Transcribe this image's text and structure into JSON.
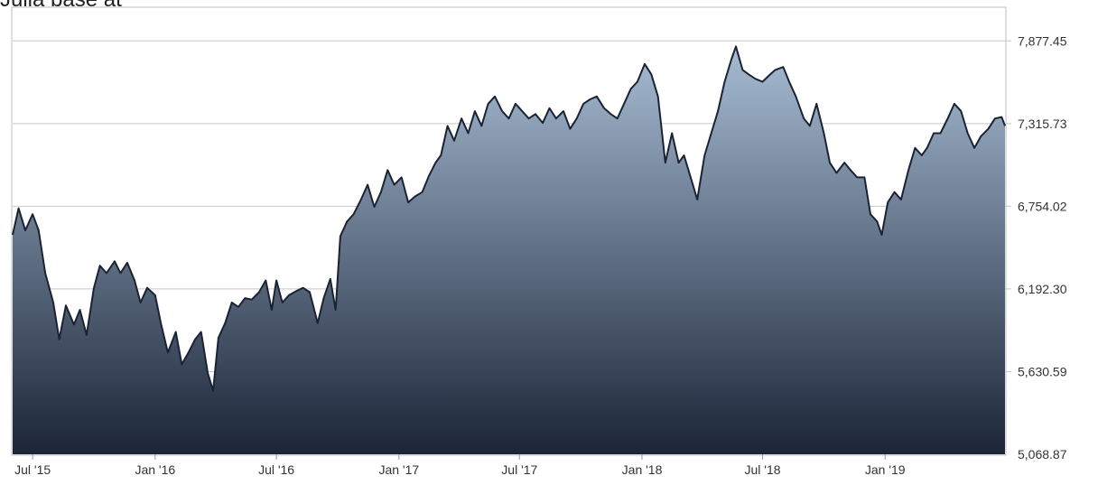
{
  "header": {
    "partial_text": "Julia base at "
  },
  "chart_data": {
    "type": "area",
    "title": "",
    "xlabel": "",
    "ylabel": "",
    "y_axis_position": "right",
    "ylim": [
      5068.87,
      8100
    ],
    "yticks": [
      5068.87,
      5630.59,
      6192.3,
      6754.02,
      7315.73,
      7877.45
    ],
    "ytick_labels": [
      "5,068.87",
      "5,630.59",
      "6,192.30",
      "6,754.02",
      "7,315.73",
      "7,877.45"
    ],
    "xlim": [
      "2015-06-01",
      "2019-06-30"
    ],
    "xticks": [
      {
        "date": "2015-07-01",
        "label": "Jul '15"
      },
      {
        "date": "2016-01-01",
        "label": "Jan '16"
      },
      {
        "date": "2016-07-01",
        "label": "Jul '16"
      },
      {
        "date": "2017-01-01",
        "label": "Jan '17"
      },
      {
        "date": "2017-07-01",
        "label": "Jul '17"
      },
      {
        "date": "2018-01-01",
        "label": "Jan '18"
      },
      {
        "date": "2018-07-01",
        "label": "Jul '18"
      },
      {
        "date": "2019-01-01",
        "label": "Jan '19"
      }
    ],
    "grid": true,
    "colors": {
      "line": "#1b2333",
      "fill_top": "#a6bcd3",
      "fill_bottom": "#1c2538",
      "grid": "#c8c8c8",
      "tick_text": "#333333"
    },
    "series": [
      {
        "points": [
          [
            "2015-06-01",
            6560
          ],
          [
            "2015-06-10",
            6740
          ],
          [
            "2015-06-20",
            6590
          ],
          [
            "2015-07-01",
            6700
          ],
          [
            "2015-07-10",
            6590
          ],
          [
            "2015-07-20",
            6300
          ],
          [
            "2015-08-01",
            6100
          ],
          [
            "2015-08-10",
            5850
          ],
          [
            "2015-08-20",
            6080
          ],
          [
            "2015-09-01",
            5950
          ],
          [
            "2015-09-10",
            6050
          ],
          [
            "2015-09-20",
            5880
          ],
          [
            "2015-10-01",
            6200
          ],
          [
            "2015-10-10",
            6350
          ],
          [
            "2015-10-20",
            6300
          ],
          [
            "2015-11-01",
            6380
          ],
          [
            "2015-11-10",
            6300
          ],
          [
            "2015-11-20",
            6370
          ],
          [
            "2015-12-01",
            6250
          ],
          [
            "2015-12-10",
            6100
          ],
          [
            "2015-12-20",
            6200
          ],
          [
            "2016-01-01",
            6150
          ],
          [
            "2016-01-10",
            5950
          ],
          [
            "2016-01-20",
            5760
          ],
          [
            "2016-02-01",
            5900
          ],
          [
            "2016-02-10",
            5680
          ],
          [
            "2016-02-20",
            5760
          ],
          [
            "2016-03-01",
            5850
          ],
          [
            "2016-03-10",
            5900
          ],
          [
            "2016-03-20",
            5620
          ],
          [
            "2016-03-28",
            5500
          ],
          [
            "2016-04-05",
            5860
          ],
          [
            "2016-04-15",
            5960
          ],
          [
            "2016-04-25",
            6100
          ],
          [
            "2016-05-05",
            6070
          ],
          [
            "2016-05-15",
            6130
          ],
          [
            "2016-05-25",
            6120
          ],
          [
            "2016-06-05",
            6170
          ],
          [
            "2016-06-15",
            6250
          ],
          [
            "2016-06-24",
            6050
          ],
          [
            "2016-07-01",
            6250
          ],
          [
            "2016-07-10",
            6100
          ],
          [
            "2016-07-20",
            6150
          ],
          [
            "2016-08-01",
            6180
          ],
          [
            "2016-08-10",
            6200
          ],
          [
            "2016-08-20",
            6170
          ],
          [
            "2016-09-01",
            5960
          ],
          [
            "2016-09-10",
            6130
          ],
          [
            "2016-09-20",
            6260
          ],
          [
            "2016-09-28",
            6050
          ],
          [
            "2016-10-05",
            6550
          ],
          [
            "2016-10-15",
            6650
          ],
          [
            "2016-10-25",
            6700
          ],
          [
            "2016-11-05",
            6800
          ],
          [
            "2016-11-15",
            6900
          ],
          [
            "2016-11-25",
            6750
          ],
          [
            "2016-12-05",
            6850
          ],
          [
            "2016-12-15",
            7000
          ],
          [
            "2016-12-25",
            6900
          ],
          [
            "2017-01-05",
            6950
          ],
          [
            "2017-01-15",
            6780
          ],
          [
            "2017-01-25",
            6820
          ],
          [
            "2017-02-05",
            6850
          ],
          [
            "2017-02-15",
            6960
          ],
          [
            "2017-02-25",
            7050
          ],
          [
            "2017-03-05",
            7100
          ],
          [
            "2017-03-15",
            7300
          ],
          [
            "2017-03-25",
            7200
          ],
          [
            "2017-04-05",
            7350
          ],
          [
            "2017-04-15",
            7250
          ],
          [
            "2017-04-25",
            7400
          ],
          [
            "2017-05-05",
            7300
          ],
          [
            "2017-05-15",
            7450
          ],
          [
            "2017-05-25",
            7500
          ],
          [
            "2017-06-05",
            7400
          ],
          [
            "2017-06-15",
            7350
          ],
          [
            "2017-06-25",
            7450
          ],
          [
            "2017-07-05",
            7400
          ],
          [
            "2017-07-15",
            7350
          ],
          [
            "2017-07-25",
            7380
          ],
          [
            "2017-08-05",
            7320
          ],
          [
            "2017-08-15",
            7420
          ],
          [
            "2017-08-25",
            7350
          ],
          [
            "2017-09-05",
            7400
          ],
          [
            "2017-09-15",
            7280
          ],
          [
            "2017-09-25",
            7350
          ],
          [
            "2017-10-05",
            7450
          ],
          [
            "2017-10-15",
            7480
          ],
          [
            "2017-10-25",
            7500
          ],
          [
            "2017-11-05",
            7420
          ],
          [
            "2017-11-15",
            7380
          ],
          [
            "2017-11-25",
            7350
          ],
          [
            "2017-12-05",
            7450
          ],
          [
            "2017-12-15",
            7550
          ],
          [
            "2017-12-25",
            7600
          ],
          [
            "2018-01-05",
            7720
          ],
          [
            "2018-01-15",
            7650
          ],
          [
            "2018-01-25",
            7500
          ],
          [
            "2018-02-05",
            7050
          ],
          [
            "2018-02-15",
            7250
          ],
          [
            "2018-02-25",
            7050
          ],
          [
            "2018-03-05",
            7100
          ],
          [
            "2018-03-15",
            6950
          ],
          [
            "2018-03-25",
            6800
          ],
          [
            "2018-04-05",
            7100
          ],
          [
            "2018-04-15",
            7250
          ],
          [
            "2018-04-25",
            7400
          ],
          [
            "2018-05-05",
            7600
          ],
          [
            "2018-05-15",
            7750
          ],
          [
            "2018-05-22",
            7840
          ],
          [
            "2018-06-01",
            7680
          ],
          [
            "2018-06-10",
            7650
          ],
          [
            "2018-06-20",
            7620
          ],
          [
            "2018-07-01",
            7600
          ],
          [
            "2018-07-10",
            7640
          ],
          [
            "2018-07-20",
            7680
          ],
          [
            "2018-08-01",
            7700
          ],
          [
            "2018-08-10",
            7600
          ],
          [
            "2018-08-20",
            7500
          ],
          [
            "2018-09-01",
            7350
          ],
          [
            "2018-09-10",
            7300
          ],
          [
            "2018-09-20",
            7450
          ],
          [
            "2018-10-01",
            7250
          ],
          [
            "2018-10-10",
            7050
          ],
          [
            "2018-10-20",
            6980
          ],
          [
            "2018-11-01",
            7050
          ],
          [
            "2018-11-10",
            7000
          ],
          [
            "2018-11-20",
            6950
          ],
          [
            "2018-12-01",
            6950
          ],
          [
            "2018-12-10",
            6700
          ],
          [
            "2018-12-20",
            6650
          ],
          [
            "2018-12-27",
            6560
          ],
          [
            "2019-01-05",
            6780
          ],
          [
            "2019-01-15",
            6850
          ],
          [
            "2019-01-25",
            6800
          ],
          [
            "2019-02-05",
            7000
          ],
          [
            "2019-02-15",
            7150
          ],
          [
            "2019-02-25",
            7100
          ],
          [
            "2019-03-05",
            7150
          ],
          [
            "2019-03-15",
            7250
          ],
          [
            "2019-03-25",
            7250
          ],
          [
            "2019-04-05",
            7350
          ],
          [
            "2019-04-15",
            7450
          ],
          [
            "2019-04-25",
            7400
          ],
          [
            "2019-05-05",
            7250
          ],
          [
            "2019-05-15",
            7150
          ],
          [
            "2019-05-25",
            7230
          ],
          [
            "2019-06-05",
            7280
          ],
          [
            "2019-06-15",
            7350
          ],
          [
            "2019-06-25",
            7360
          ],
          [
            "2019-06-30",
            7300
          ]
        ]
      }
    ]
  }
}
